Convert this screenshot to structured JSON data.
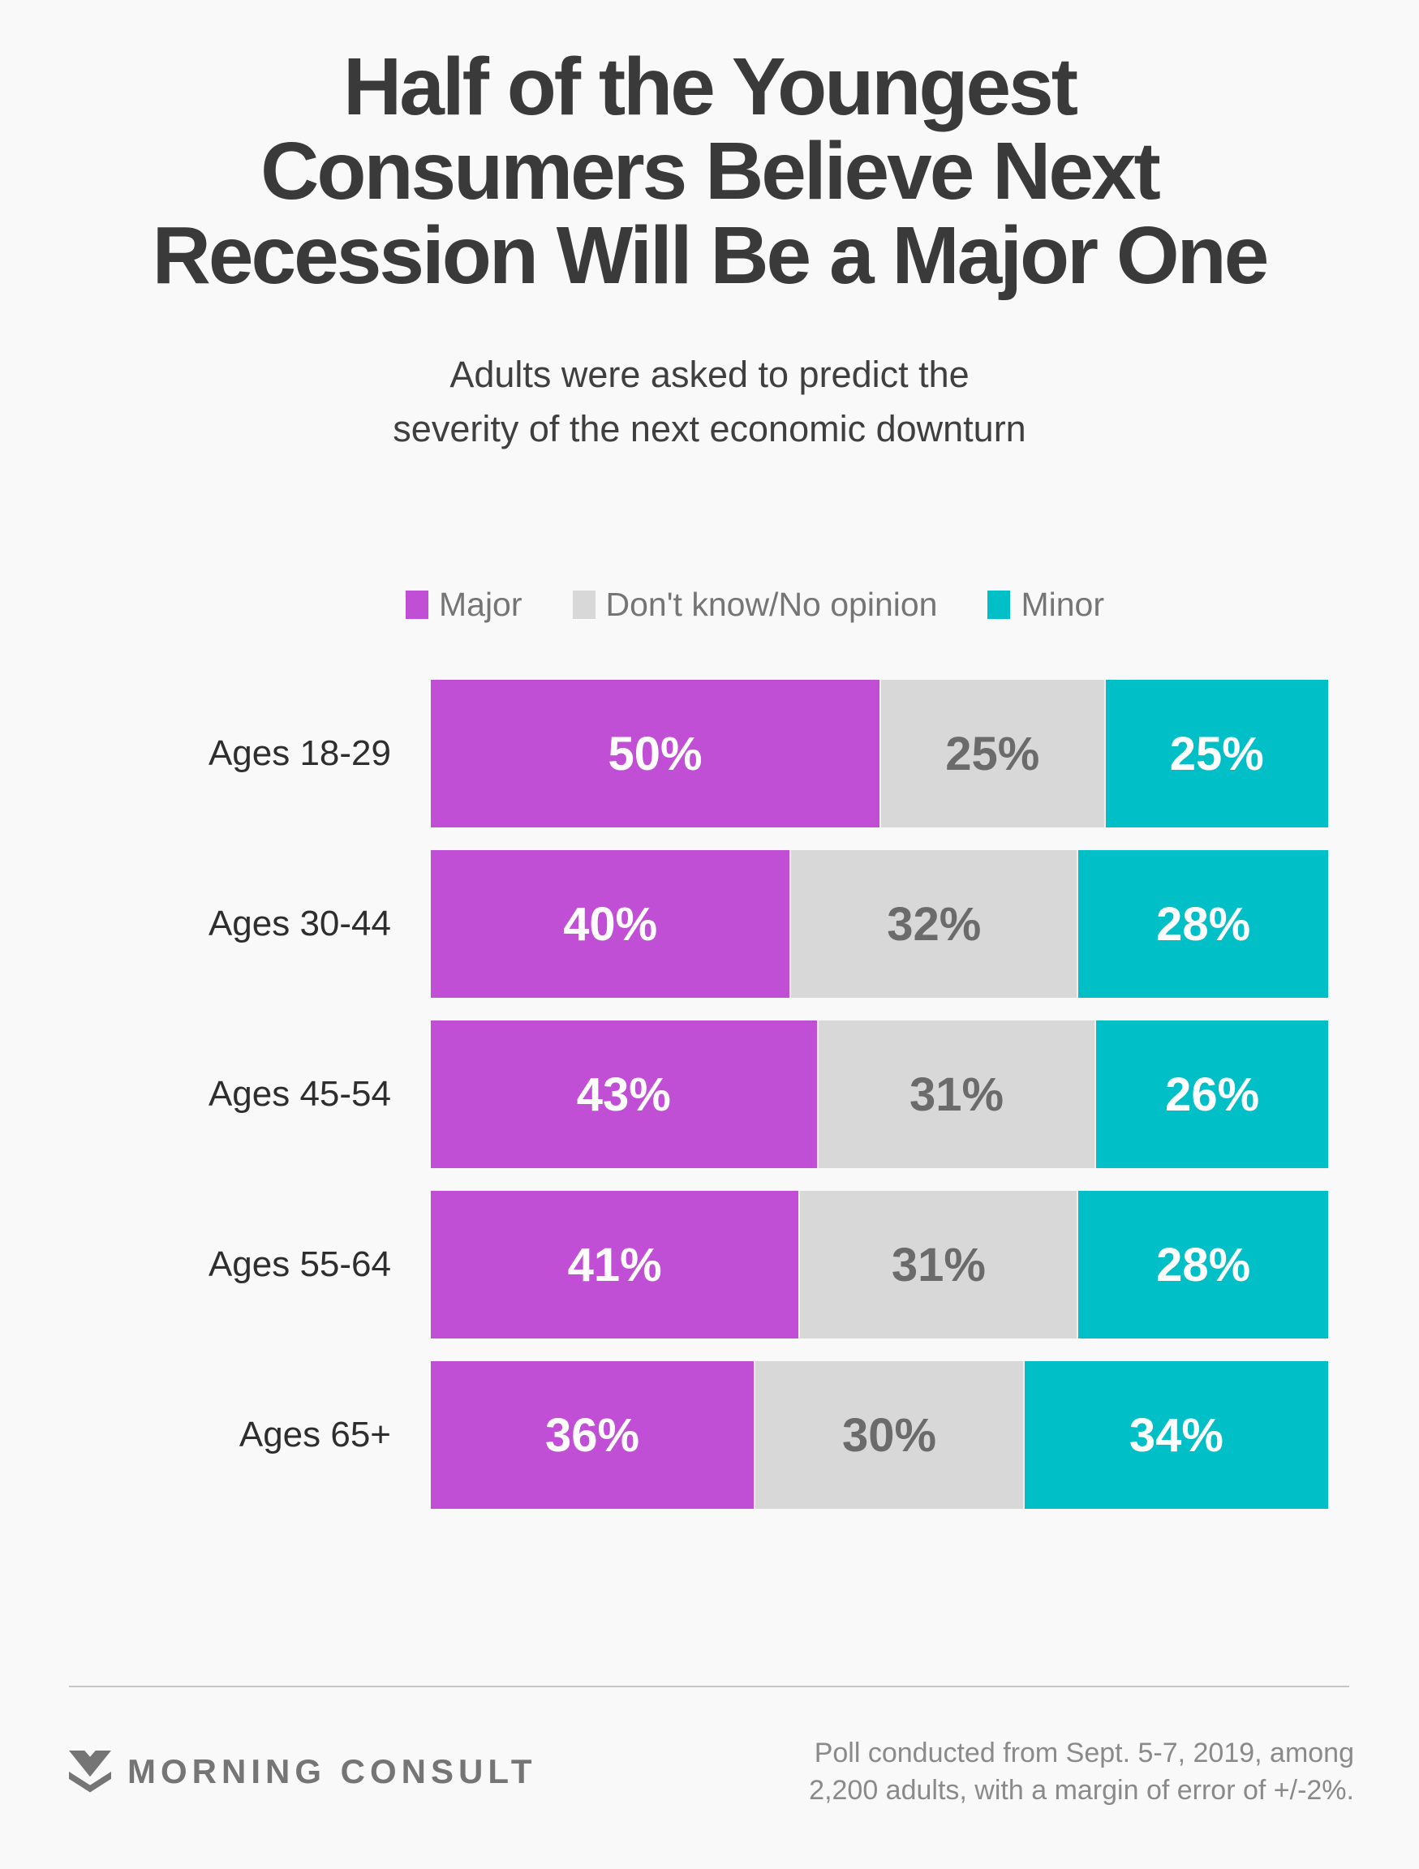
{
  "title": {
    "full": "Half of the Youngest Consumers Believe Next Recession Will Be a Major One",
    "lines": [
      "Half of the Youngest",
      "Consumers Believe Next",
      "Recession Will Be a Major One"
    ]
  },
  "subtitle": {
    "full": "Adults were asked to predict the severity of the next economic downturn",
    "lines": [
      "Adults were asked to predict the",
      "severity of the next economic downturn"
    ]
  },
  "chart_data": {
    "type": "bar",
    "orientation": "horizontal-stacked",
    "title": "Half of the Youngest Consumers Believe Next Recession Will Be a Major One",
    "subtitle": "Adults were asked to predict the severity of the next economic downturn",
    "categories": [
      "Ages 18-29",
      "Ages 30-44",
      "Ages 45-54",
      "Ages 55-64",
      "Ages 65+"
    ],
    "series": [
      {
        "name": "Major",
        "color": "#c14fd6",
        "text_color": "#ffffff",
        "values": [
          50,
          40,
          43,
          41,
          36
        ]
      },
      {
        "name": "Don't know/No opinion",
        "color": "#d8d8d8",
        "text_color": "#6b6b6b",
        "values": [
          25,
          32,
          31,
          31,
          30
        ]
      },
      {
        "name": "Minor",
        "color": "#00bfc6",
        "text_color": "#ffffff",
        "values": [
          25,
          28,
          26,
          28,
          34
        ]
      }
    ],
    "value_suffix": "%",
    "xlim": [
      0,
      100
    ],
    "grid": false,
    "legend_position": "top-center",
    "bar_label_format": "inside-center"
  },
  "colors": {
    "background": "#f9f9f9",
    "title_text": "#3a3a3a",
    "legend_text": "#757575",
    "category_label_text": "#2e2e2e",
    "divider": "#c5c5c5",
    "footer_text": "#8a8a8a",
    "brand": "#757575"
  },
  "footer": {
    "brand": "MORNING CONSULT",
    "source_lines": [
      "Poll conducted from Sept. 5-7, 2019, among",
      "2,200 adults, with a margin of error of +/-2%."
    ],
    "source_full": "Poll conducted from Sept. 5-7, 2019, among 2,200 adults, with a margin of error of +/-2%."
  }
}
